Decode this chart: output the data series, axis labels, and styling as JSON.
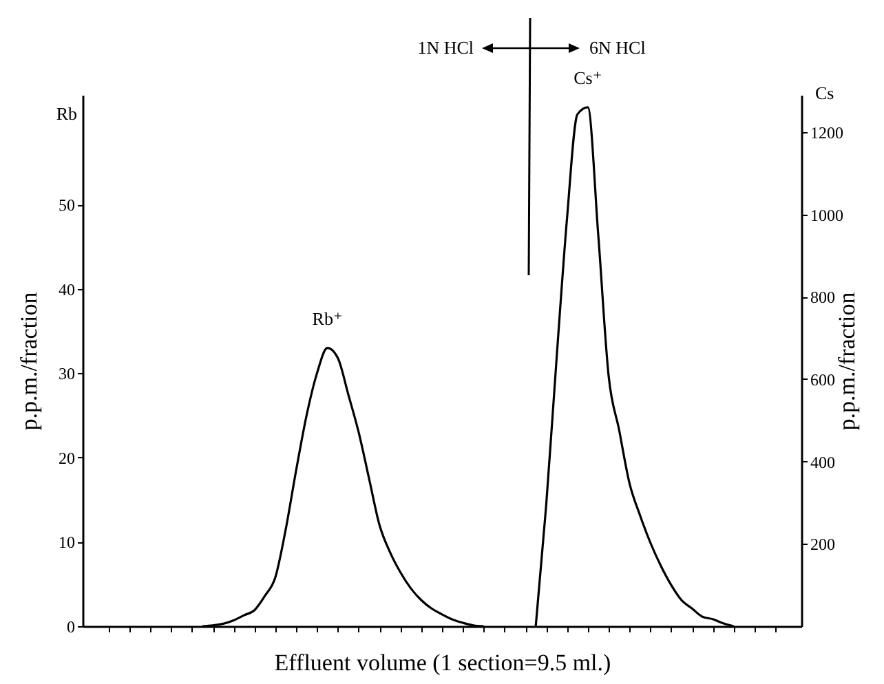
{
  "chart_data": {
    "type": "line",
    "xlabel": "Effluent volume (1 section=9.5 ml.)",
    "ylabel": "p.p.m./fraction",
    "y2label": "p.p.m./fraction",
    "annotations": [
      "Rb",
      "Cs",
      "1N HCl",
      "6N HCl"
    ],
    "categories": [
      null,
      null,
      null,
      null,
      null,
      null,
      null,
      null,
      null,
      null,
      null,
      null,
      null,
      null,
      null,
      null,
      null,
      null,
      null,
      null,
      null,
      null,
      null,
      null,
      null,
      null,
      null,
      null,
      null,
      null,
      null,
      null,
      null,
      null,
      null,
      null,
      null,
      null,
      null,
      null,
      null,
      null,
      null,
      null,
      null,
      null,
      null,
      null,
      null,
      null,
      null,
      null,
      null,
      null,
      null,
      null,
      null,
      null,
      null,
      null,
      null,
      null,
      null,
      null,
      null,
      null,
      null,
      null,
      null
    ],
    "series": [
      {
        "name": "Rb⁺",
        "color": "#000000",
        "values": [
          null,
          null,
          null,
          null,
          null,
          null,
          null,
          null,
          null,
          null,
          null,
          0,
          0.1,
          0.3,
          0.7,
          1.3,
          1.9,
          3.6,
          5.8,
          11.5,
          18.5,
          25,
          30,
          33,
          31.8,
          27.5,
          23,
          17.5,
          12,
          8.8,
          6.4,
          4.5,
          3.1,
          2.1,
          1.4,
          0.8,
          0.4,
          0.1,
          0,
          null,
          null,
          null,
          null,
          null,
          null,
          null,
          null,
          null,
          null,
          null,
          null,
          null,
          null,
          null,
          null,
          null,
          null,
          null,
          null,
          null,
          null,
          null,
          null,
          null,
          null,
          null,
          null,
          null,
          null
        ]
      },
      {
        "name": "Cs⁺",
        "color": "#000000",
        "axis": "y2",
        "values": [
          null,
          null,
          null,
          null,
          null,
          null,
          null,
          null,
          null,
          null,
          null,
          null,
          null,
          null,
          null,
          null,
          null,
          null,
          null,
          null,
          null,
          null,
          null,
          null,
          null,
          null,
          null,
          null,
          null,
          null,
          null,
          null,
          null,
          null,
          null,
          null,
          null,
          null,
          null,
          null,
          null,
          null,
          null,
          0,
          293,
          650,
          990,
          1243,
          1260,
          950,
          607,
          477,
          347,
          270,
          203,
          147,
          100,
          63,
          43,
          23,
          17,
          7,
          0,
          null,
          null,
          null,
          null,
          null,
          null
        ]
      }
    ],
    "ylim": [
      0,
      63
    ],
    "yticks": [
      0,
      10,
      20,
      30,
      40,
      50
    ],
    "y2lim": [
      0,
      1290
    ],
    "y2ticks": [
      200,
      400,
      600,
      800,
      1000,
      1200
    ]
  }
}
